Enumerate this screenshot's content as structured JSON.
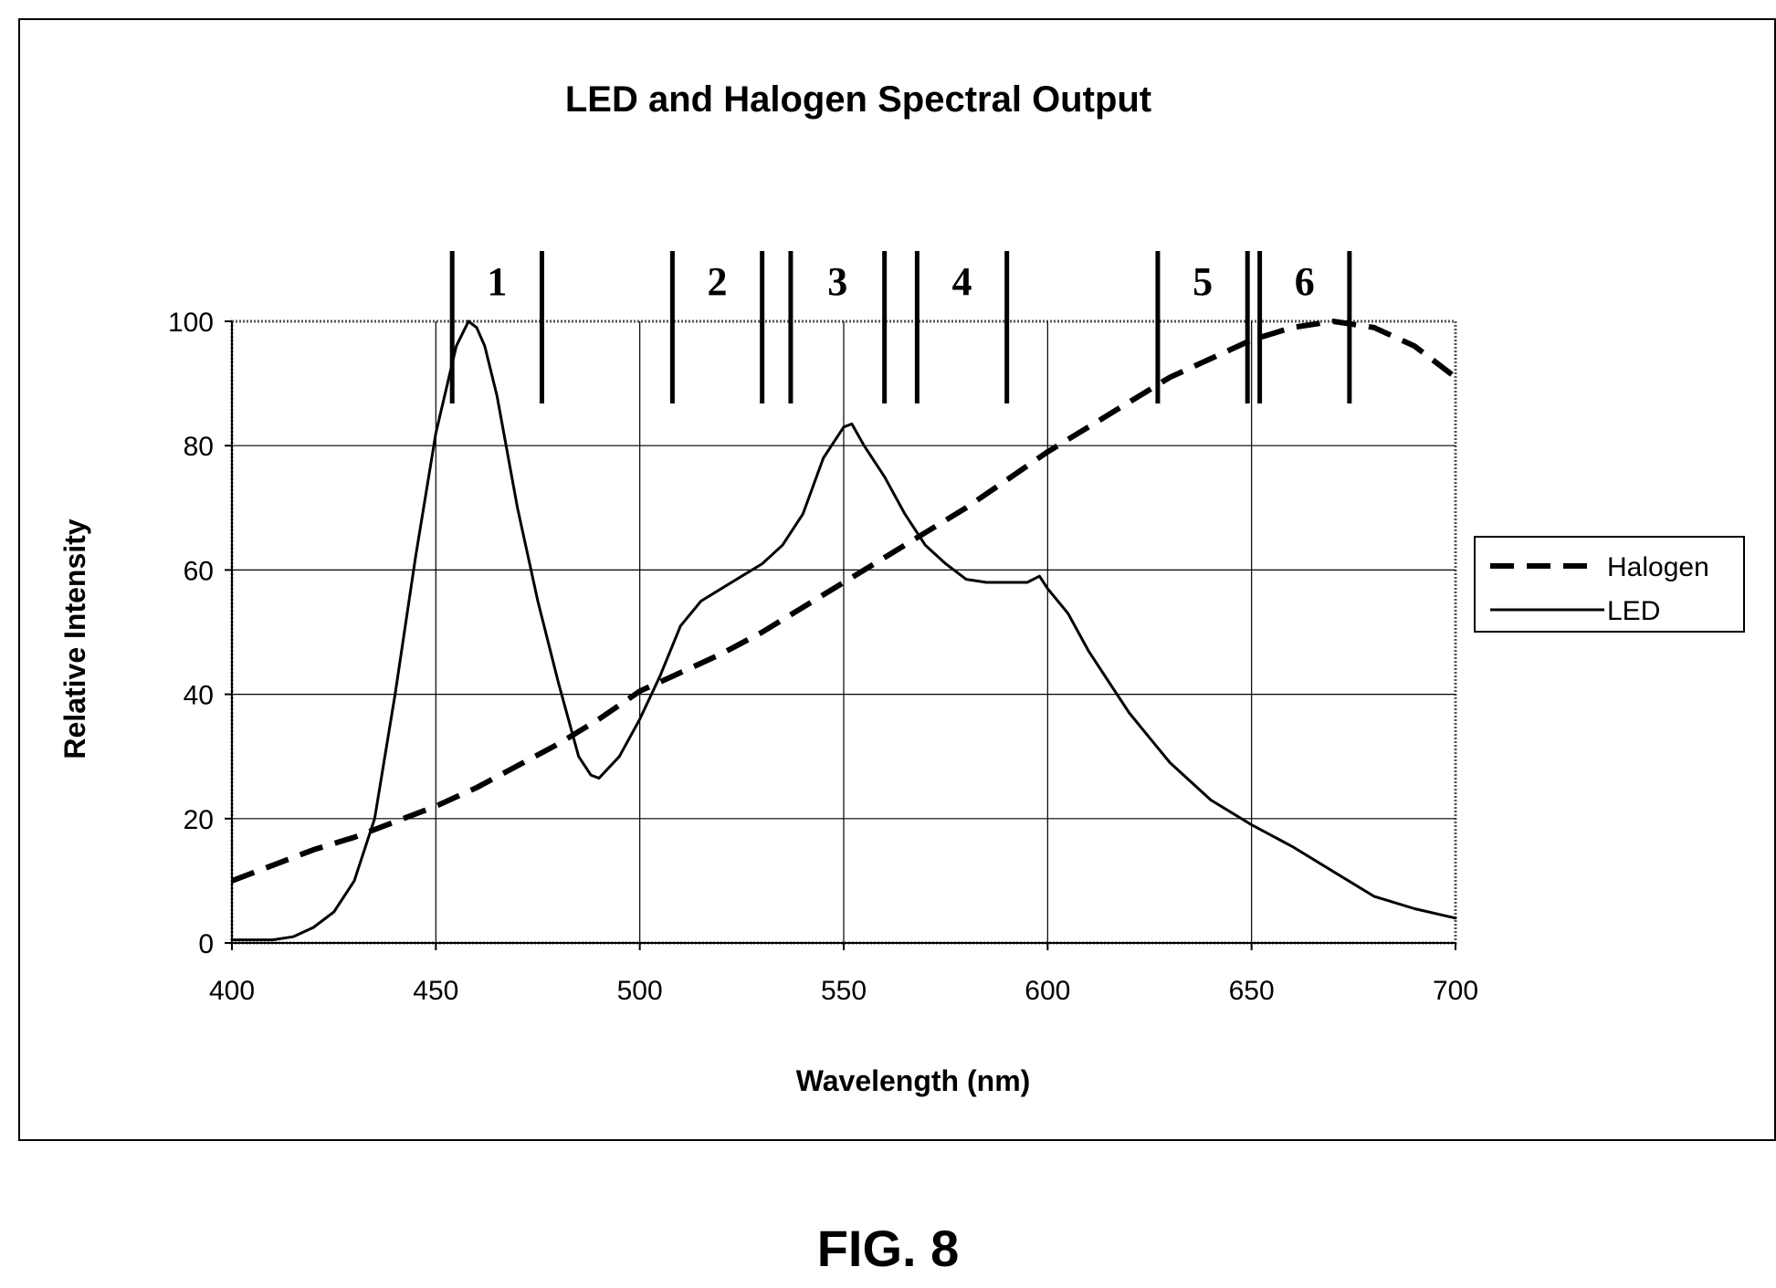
{
  "figure_label": "FIG. 8",
  "chart_data": {
    "type": "line",
    "title": "LED and Halogen Spectral Output",
    "xlabel": "Wavelength (nm)",
    "ylabel": "Relative Intensity",
    "xlim": [
      400,
      700
    ],
    "ylim": [
      0,
      100
    ],
    "xticks": [
      400,
      450,
      500,
      550,
      600,
      650,
      700
    ],
    "yticks": [
      0,
      20,
      40,
      60,
      80,
      100
    ],
    "grid": true,
    "legend_position": "right",
    "series": [
      {
        "name": "Halogen",
        "style": "dashed",
        "color": "#000000",
        "x": [
          400,
          410,
          420,
          430,
          440,
          450,
          460,
          470,
          480,
          490,
          500,
          510,
          520,
          530,
          540,
          550,
          560,
          570,
          580,
          590,
          600,
          610,
          620,
          630,
          640,
          650,
          660,
          670,
          680,
          690,
          700
        ],
        "y": [
          10,
          12.5,
          15,
          17,
          19.5,
          22,
          25,
          28.5,
          32,
          36,
          40.5,
          43.5,
          46.5,
          50,
          54,
          58,
          62,
          66,
          70,
          74.5,
          79,
          83,
          87,
          91,
          94,
          97,
          99,
          100,
          99,
          96,
          91
        ]
      },
      {
        "name": "LED",
        "style": "solid",
        "color": "#000000",
        "x": [
          400,
          405,
          410,
          415,
          420,
          425,
          430,
          435,
          440,
          445,
          450,
          455,
          458,
          460,
          462,
          465,
          470,
          475,
          480,
          485,
          488,
          490,
          495,
          500,
          505,
          510,
          515,
          520,
          525,
          530,
          535,
          540,
          545,
          550,
          552,
          555,
          560,
          565,
          570,
          575,
          580,
          585,
          590,
          595,
          598,
          600,
          605,
          610,
          615,
          620,
          625,
          630,
          640,
          650,
          660,
          670,
          680,
          690,
          700
        ],
        "y": [
          0.5,
          0.5,
          0.5,
          1,
          2.5,
          5,
          10,
          20,
          40,
          62,
          82,
          96,
          100,
          99,
          96,
          88,
          70,
          55,
          42,
          30,
          27,
          26.5,
          30,
          36,
          43,
          51,
          55,
          57,
          59,
          61,
          64,
          69,
          78,
          83,
          83.5,
          80,
          75,
          69,
          64,
          61,
          58.5,
          58,
          58,
          58,
          59,
          57,
          53,
          47,
          42,
          37,
          33,
          29,
          23,
          19,
          15.5,
          11.5,
          7.5,
          5.5,
          4
        ]
      }
    ],
    "bands": [
      {
        "label": "1",
        "x_start": 454,
        "x_end": 476
      },
      {
        "label": "2",
        "x_start": 508,
        "x_end": 530
      },
      {
        "label": "3",
        "x_start": 537,
        "x_end": 560
      },
      {
        "label": "4",
        "x_start": 568,
        "x_end": 590
      },
      {
        "label": "5",
        "x_start": 627,
        "x_end": 649
      },
      {
        "label": "6",
        "x_start": 652,
        "x_end": 674
      }
    ]
  }
}
